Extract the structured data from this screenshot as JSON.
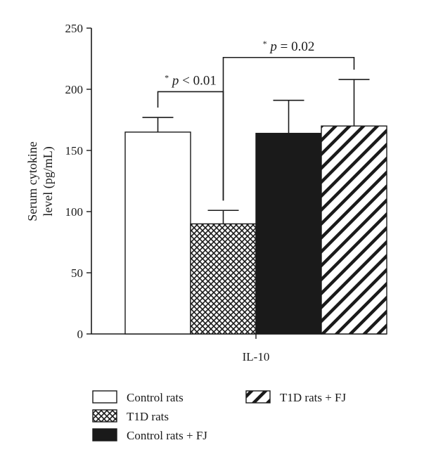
{
  "chart_data": {
    "type": "bar",
    "ylabel": "Serum cytokine level (pg/mL)",
    "ylabel_lines": [
      "Serum cytokine",
      "level (pg/mL)"
    ],
    "xlabel": "IL-10",
    "ylim": [
      0,
      250
    ],
    "yticks": [
      "0",
      "50",
      "100",
      "150",
      "200",
      "250"
    ],
    "series": [
      {
        "name": "Control rats",
        "value": 165,
        "error": 12,
        "fill": "white"
      },
      {
        "name": "T1D rats",
        "value": 90,
        "error": 11,
        "fill": "crosshatch"
      },
      {
        "name": "Control rats + FJ",
        "value": 164,
        "error": 27,
        "fill": "black"
      },
      {
        "name": "T1D rats + FJ",
        "value": 170,
        "error": 38,
        "fill": "diagonal"
      }
    ],
    "annotations": [
      {
        "from_series": 0,
        "to_series": 1,
        "star": "*",
        "text": "p < 0.01",
        "level": 198
      },
      {
        "from_series": 1,
        "to_series": 3,
        "star": "*",
        "text": "p = 0.02",
        "level": 226
      }
    ],
    "legend_placement": "bottom",
    "colors": {
      "ink": "#1a1a1a",
      "background": "#ffffff"
    }
  }
}
